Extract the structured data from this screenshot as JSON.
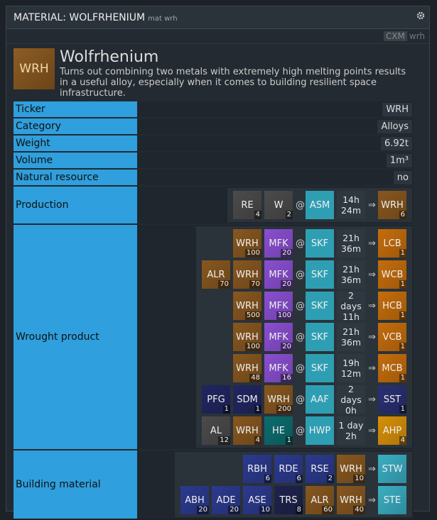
{
  "header": {
    "title": "MATERIAL: WOLFRHENIUM",
    "subtitle": "mat wrh"
  },
  "command": {
    "name": "CXM",
    "argument": "wrh"
  },
  "material": {
    "ticker": "WRH",
    "name": "Wolfrhenium",
    "description": "Turns out combining two metals with extremely high melting points results in a useful alloy, especially when it comes to building resilient space infrastructure."
  },
  "properties": [
    {
      "label": "Ticker",
      "value": "WRH"
    },
    {
      "label": "Category",
      "value": "Alloys"
    },
    {
      "label": "Weight",
      "value": "6.92t"
    },
    {
      "label": "Volume",
      "value": "1m³"
    },
    {
      "label": "Natural resource",
      "value": "no"
    }
  ],
  "symbols": {
    "at": "@",
    "arrow": "⇒"
  },
  "tile_colors": {
    "WRH": "#87571f",
    "ALR": "#87571f",
    "RE": "#4b4b4b",
    "W": "#4b4b4b",
    "AL": "#4b4b4b",
    "MFK": "#8a4fd1",
    "ASM": "#2e9fb3",
    "SKF": "#2e9fb3",
    "AAF": "#2e9fb3",
    "HWP": "#2e9fb3",
    "STW": "#3aaec2",
    "STE": "#3aaec2",
    "LCB": "#c46d0c",
    "WCB": "#c46d0c",
    "HCB": "#c46d0c",
    "VCB": "#c46d0c",
    "MCB": "#c46d0c",
    "PFG": "#212660",
    "SDM": "#212660",
    "SST": "#2a3072",
    "HE": "#0d6c6e",
    "AHP": "#d69009",
    "RBH": "#2c3a8e",
    "RDE": "#2c3a8e",
    "RSE": "#2c3a8e",
    "ABH": "#2c3a8e",
    "ADE": "#2c3a8e",
    "ASE": "#2c3a8e",
    "TRS": "#1f234d"
  },
  "sections": [
    {
      "label": "Production",
      "recipes": [
        {
          "inputs": [
            {
              "ticker": "RE",
              "amount": 4
            },
            {
              "ticker": "W",
              "amount": 2
            }
          ],
          "building": "ASM",
          "duration": "14h 24m",
          "outputs": [
            {
              "ticker": "WRH",
              "amount": 6
            }
          ]
        }
      ]
    },
    {
      "label": "Wrought product",
      "recipes": [
        {
          "inputs": [
            {
              "ticker": "WRH",
              "amount": 100
            },
            {
              "ticker": "MFK",
              "amount": 20
            }
          ],
          "building": "SKF",
          "duration": "21h 36m",
          "outputs": [
            {
              "ticker": "LCB",
              "amount": 1
            }
          ]
        },
        {
          "inputs": [
            {
              "ticker": "ALR",
              "amount": 70
            },
            {
              "ticker": "WRH",
              "amount": 70
            },
            {
              "ticker": "MFK",
              "amount": 20
            }
          ],
          "building": "SKF",
          "duration": "21h 36m",
          "outputs": [
            {
              "ticker": "WCB",
              "amount": 1
            }
          ]
        },
        {
          "inputs": [
            {
              "ticker": "WRH",
              "amount": 500
            },
            {
              "ticker": "MFK",
              "amount": 100
            }
          ],
          "building": "SKF",
          "duration": "2 days 11h",
          "outputs": [
            {
              "ticker": "HCB",
              "amount": 1
            }
          ]
        },
        {
          "inputs": [
            {
              "ticker": "WRH",
              "amount": 100
            },
            {
              "ticker": "MFK",
              "amount": 20
            }
          ],
          "building": "SKF",
          "duration": "21h 36m",
          "outputs": [
            {
              "ticker": "VCB",
              "amount": 1
            }
          ]
        },
        {
          "inputs": [
            {
              "ticker": "WRH",
              "amount": 48
            },
            {
              "ticker": "MFK",
              "amount": 16
            }
          ],
          "building": "SKF",
          "duration": "19h 12m",
          "outputs": [
            {
              "ticker": "MCB",
              "amount": 1
            }
          ]
        },
        {
          "inputs": [
            {
              "ticker": "PFG",
              "amount": 1
            },
            {
              "ticker": "SDM",
              "amount": 1
            },
            {
              "ticker": "WRH",
              "amount": 200
            }
          ],
          "building": "AAF",
          "duration": "2 days 0h",
          "outputs": [
            {
              "ticker": "SST",
              "amount": 1
            }
          ]
        },
        {
          "inputs": [
            {
              "ticker": "AL",
              "amount": 12
            },
            {
              "ticker": "WRH",
              "amount": 4
            },
            {
              "ticker": "HE",
              "amount": 1
            }
          ],
          "building": "HWP",
          "duration": "1 day 2h",
          "outputs": [
            {
              "ticker": "AHP",
              "amount": 4
            }
          ]
        }
      ]
    },
    {
      "label": "Building material",
      "recipes": [
        {
          "inputs": [
            {
              "ticker": "RBH",
              "amount": 6
            },
            {
              "ticker": "RDE",
              "amount": 6
            },
            {
              "ticker": "RSE",
              "amount": 2
            },
            {
              "ticker": "WRH",
              "amount": 10
            }
          ],
          "outputs": [
            {
              "ticker": "STW"
            }
          ]
        },
        {
          "inputs": [
            {
              "ticker": "ABH",
              "amount": 20
            },
            {
              "ticker": "ADE",
              "amount": 20
            },
            {
              "ticker": "ASE",
              "amount": 10
            },
            {
              "ticker": "TRS",
              "amount": 8
            },
            {
              "ticker": "ALR",
              "amount": 60
            },
            {
              "ticker": "WRH",
              "amount": 40
            }
          ],
          "outputs": [
            {
              "ticker": "STE"
            }
          ]
        }
      ]
    }
  ]
}
